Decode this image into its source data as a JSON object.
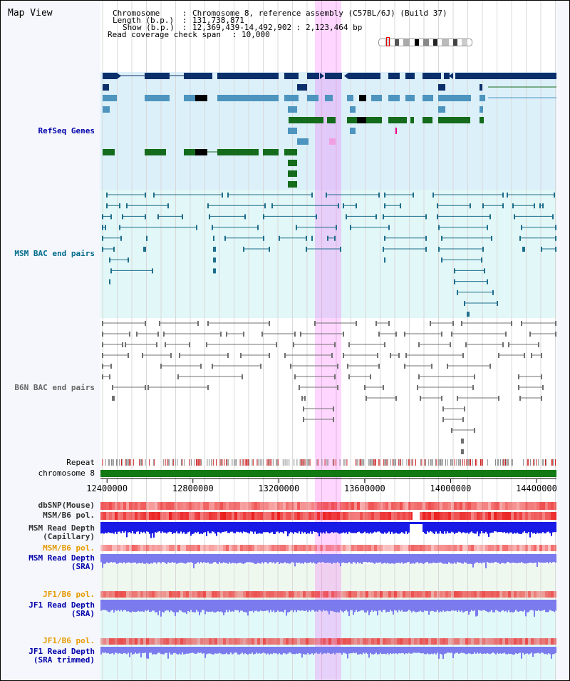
{
  "page": {
    "title": "Map View"
  },
  "info": {
    "chromosome_key": "Chromosome",
    "chromosome_value": "Chromosome 8, reference assembly (C57BL/6J) (Build 37)",
    "length_key": "Length (b.p.)",
    "length_value": "131,738,871",
    "show_key": "Show (b.p.)",
    "show_value": "12,369,439-14,492,902 : 2,123,464 bp",
    "coverage_key": "Read coverage check span",
    "coverage_value": "10,000"
  },
  "tracks": {
    "refseq": "RefSeq Genes",
    "msm_bac": "MSM BAC end pairs",
    "b6n_bac": "B6N BAC end pairs",
    "repeat": "Repeat",
    "chromosome": "chromosome 8",
    "dbsnp": "dbSNP(Mouse)",
    "msm_b6_pol": "MSM/B6 pol.",
    "msm_depth_cap_1": "MSM Read Depth",
    "msm_depth_cap_2": "(Capillary)",
    "msm_b6_pol2": "MSM/B6 pol.",
    "msm_depth_sra_1": "MSM Read Depth",
    "msm_depth_sra_2": "(SRA)",
    "jf1_b6_pol": "JF1/B6 pol.",
    "jf1_depth_sra_1": "JF1 Read Depth",
    "jf1_depth_sra_2": "(SRA)",
    "jf1_b6_pol2": "JF1/B6 pol.",
    "jf1_depth_trim_1": "JF1 Read Depth",
    "jf1_depth_trim_2": "(SRA trimmed)"
  },
  "axis": {
    "range_start": 12369439,
    "range_end": 14492902,
    "ticks": [
      "12400000",
      "12800000",
      "13200000",
      "13600000",
      "14000000",
      "14400000"
    ]
  },
  "colors": {
    "refseq_dark": "#0b2f6b",
    "refseq_light": "#4d94be",
    "refseq_green": "#136b1b",
    "msm_bac": "#1e6e8c",
    "b6n_bac": "#707070",
    "depth_capillary": "#1a1ae6",
    "depth_sra": "#7b7bee",
    "chromosome_bar": "#137a13",
    "highlight": "#f6c8f6",
    "label_blue": "#0000aa",
    "label_teal": "#006b8a",
    "label_orange": "#e69a00"
  }
}
